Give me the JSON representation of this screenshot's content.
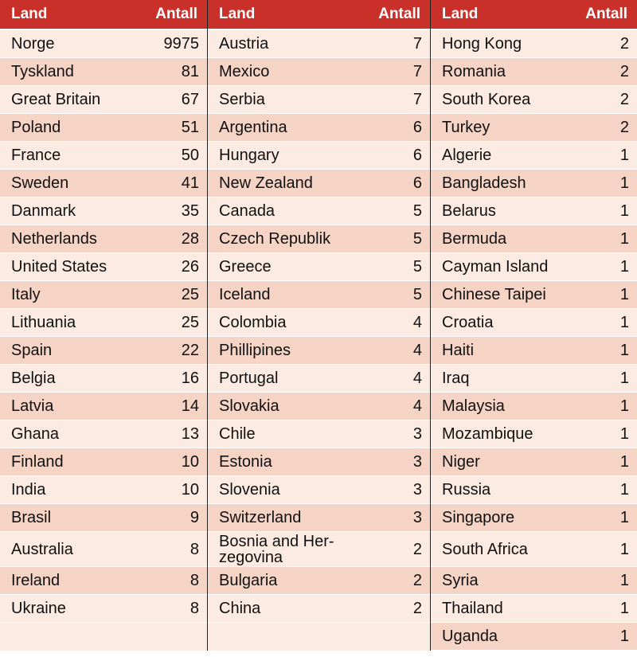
{
  "header": {
    "land": "Land",
    "antall": "Antall"
  },
  "colors": {
    "header": "#c9302a",
    "row_dark": "#f5d3c5",
    "row_light": "#fbebe3"
  },
  "columns": [
    [
      {
        "land": "Norge",
        "antall": "9975"
      },
      {
        "land": "Tyskland",
        "antall": "81"
      },
      {
        "land": "Great Britain",
        "antall": "67"
      },
      {
        "land": "Poland",
        "antall": "51"
      },
      {
        "land": "France",
        "antall": "50"
      },
      {
        "land": "Sweden",
        "antall": "41"
      },
      {
        "land": "Danmark",
        "antall": "35"
      },
      {
        "land": "Netherlands",
        "antall": "28"
      },
      {
        "land": "United States",
        "antall": "26"
      },
      {
        "land": "Italy",
        "antall": "25"
      },
      {
        "land": "Lithuania",
        "antall": "25"
      },
      {
        "land": "Spain",
        "antall": "22"
      },
      {
        "land": "Belgia",
        "antall": "16"
      },
      {
        "land": "Latvia",
        "antall": "14"
      },
      {
        "land": "Ghana",
        "antall": "13"
      },
      {
        "land": "Finland",
        "antall": "10"
      },
      {
        "land": "India",
        "antall": "10"
      },
      {
        "land": "Brasil",
        "antall": "9"
      },
      {
        "land": "Australia",
        "antall": "8"
      },
      {
        "land": "Ireland",
        "antall": "8"
      },
      {
        "land": "Ukraine",
        "antall": "8"
      }
    ],
    [
      {
        "land": "Austria",
        "antall": "7"
      },
      {
        "land": "Mexico",
        "antall": "7"
      },
      {
        "land": "Serbia",
        "antall": "7"
      },
      {
        "land": "Argentina",
        "antall": "6"
      },
      {
        "land": "Hungary",
        "antall": "6"
      },
      {
        "land": "New Zealand",
        "antall": "6"
      },
      {
        "land": "Canada",
        "antall": "5"
      },
      {
        "land": "Czech Republik",
        "antall": "5"
      },
      {
        "land": "Greece",
        "antall": "5"
      },
      {
        "land": "Iceland",
        "antall": "5"
      },
      {
        "land": "Colombia",
        "antall": "4"
      },
      {
        "land": "Phillipines",
        "antall": "4"
      },
      {
        "land": "Portugal",
        "antall": "4"
      },
      {
        "land": "Slovakia",
        "antall": "4"
      },
      {
        "land": "Chile",
        "antall": "3"
      },
      {
        "land": "Estonia",
        "antall": "3"
      },
      {
        "land": "Slovenia",
        "antall": "3"
      },
      {
        "land": "Switzerland",
        "antall": "3"
      },
      {
        "land": "Bosnia and Her-\nzegovina",
        "antall": "2"
      },
      {
        "land": "Bulgaria",
        "antall": "2"
      },
      {
        "land": "China",
        "antall": "2"
      }
    ],
    [
      {
        "land": "Hong Kong",
        "antall": "2"
      },
      {
        "land": "Romania",
        "antall": "2"
      },
      {
        "land": "South Korea",
        "antall": "2"
      },
      {
        "land": "Turkey",
        "antall": "2"
      },
      {
        "land": "Algerie",
        "antall": "1"
      },
      {
        "land": "Bangladesh",
        "antall": "1"
      },
      {
        "land": "Belarus",
        "antall": "1"
      },
      {
        "land": "Bermuda",
        "antall": "1"
      },
      {
        "land": "Cayman Island",
        "antall": "1"
      },
      {
        "land": "Chinese Taipei",
        "antall": "1"
      },
      {
        "land": "Croatia",
        "antall": "1"
      },
      {
        "land": "Haiti",
        "antall": "1"
      },
      {
        "land": "Iraq",
        "antall": "1"
      },
      {
        "land": "Malaysia",
        "antall": "1"
      },
      {
        "land": "Mozambique",
        "antall": "1"
      },
      {
        "land": "Niger",
        "antall": "1"
      },
      {
        "land": "Russia",
        "antall": "1"
      },
      {
        "land": "Singapore",
        "antall": "1"
      },
      {
        "land": "South Africa",
        "antall": "1"
      },
      {
        "land": "Syria",
        "antall": "1"
      },
      {
        "land": "Thailand",
        "antall": "1"
      },
      {
        "land": "Uganda",
        "antall": "1"
      }
    ]
  ]
}
